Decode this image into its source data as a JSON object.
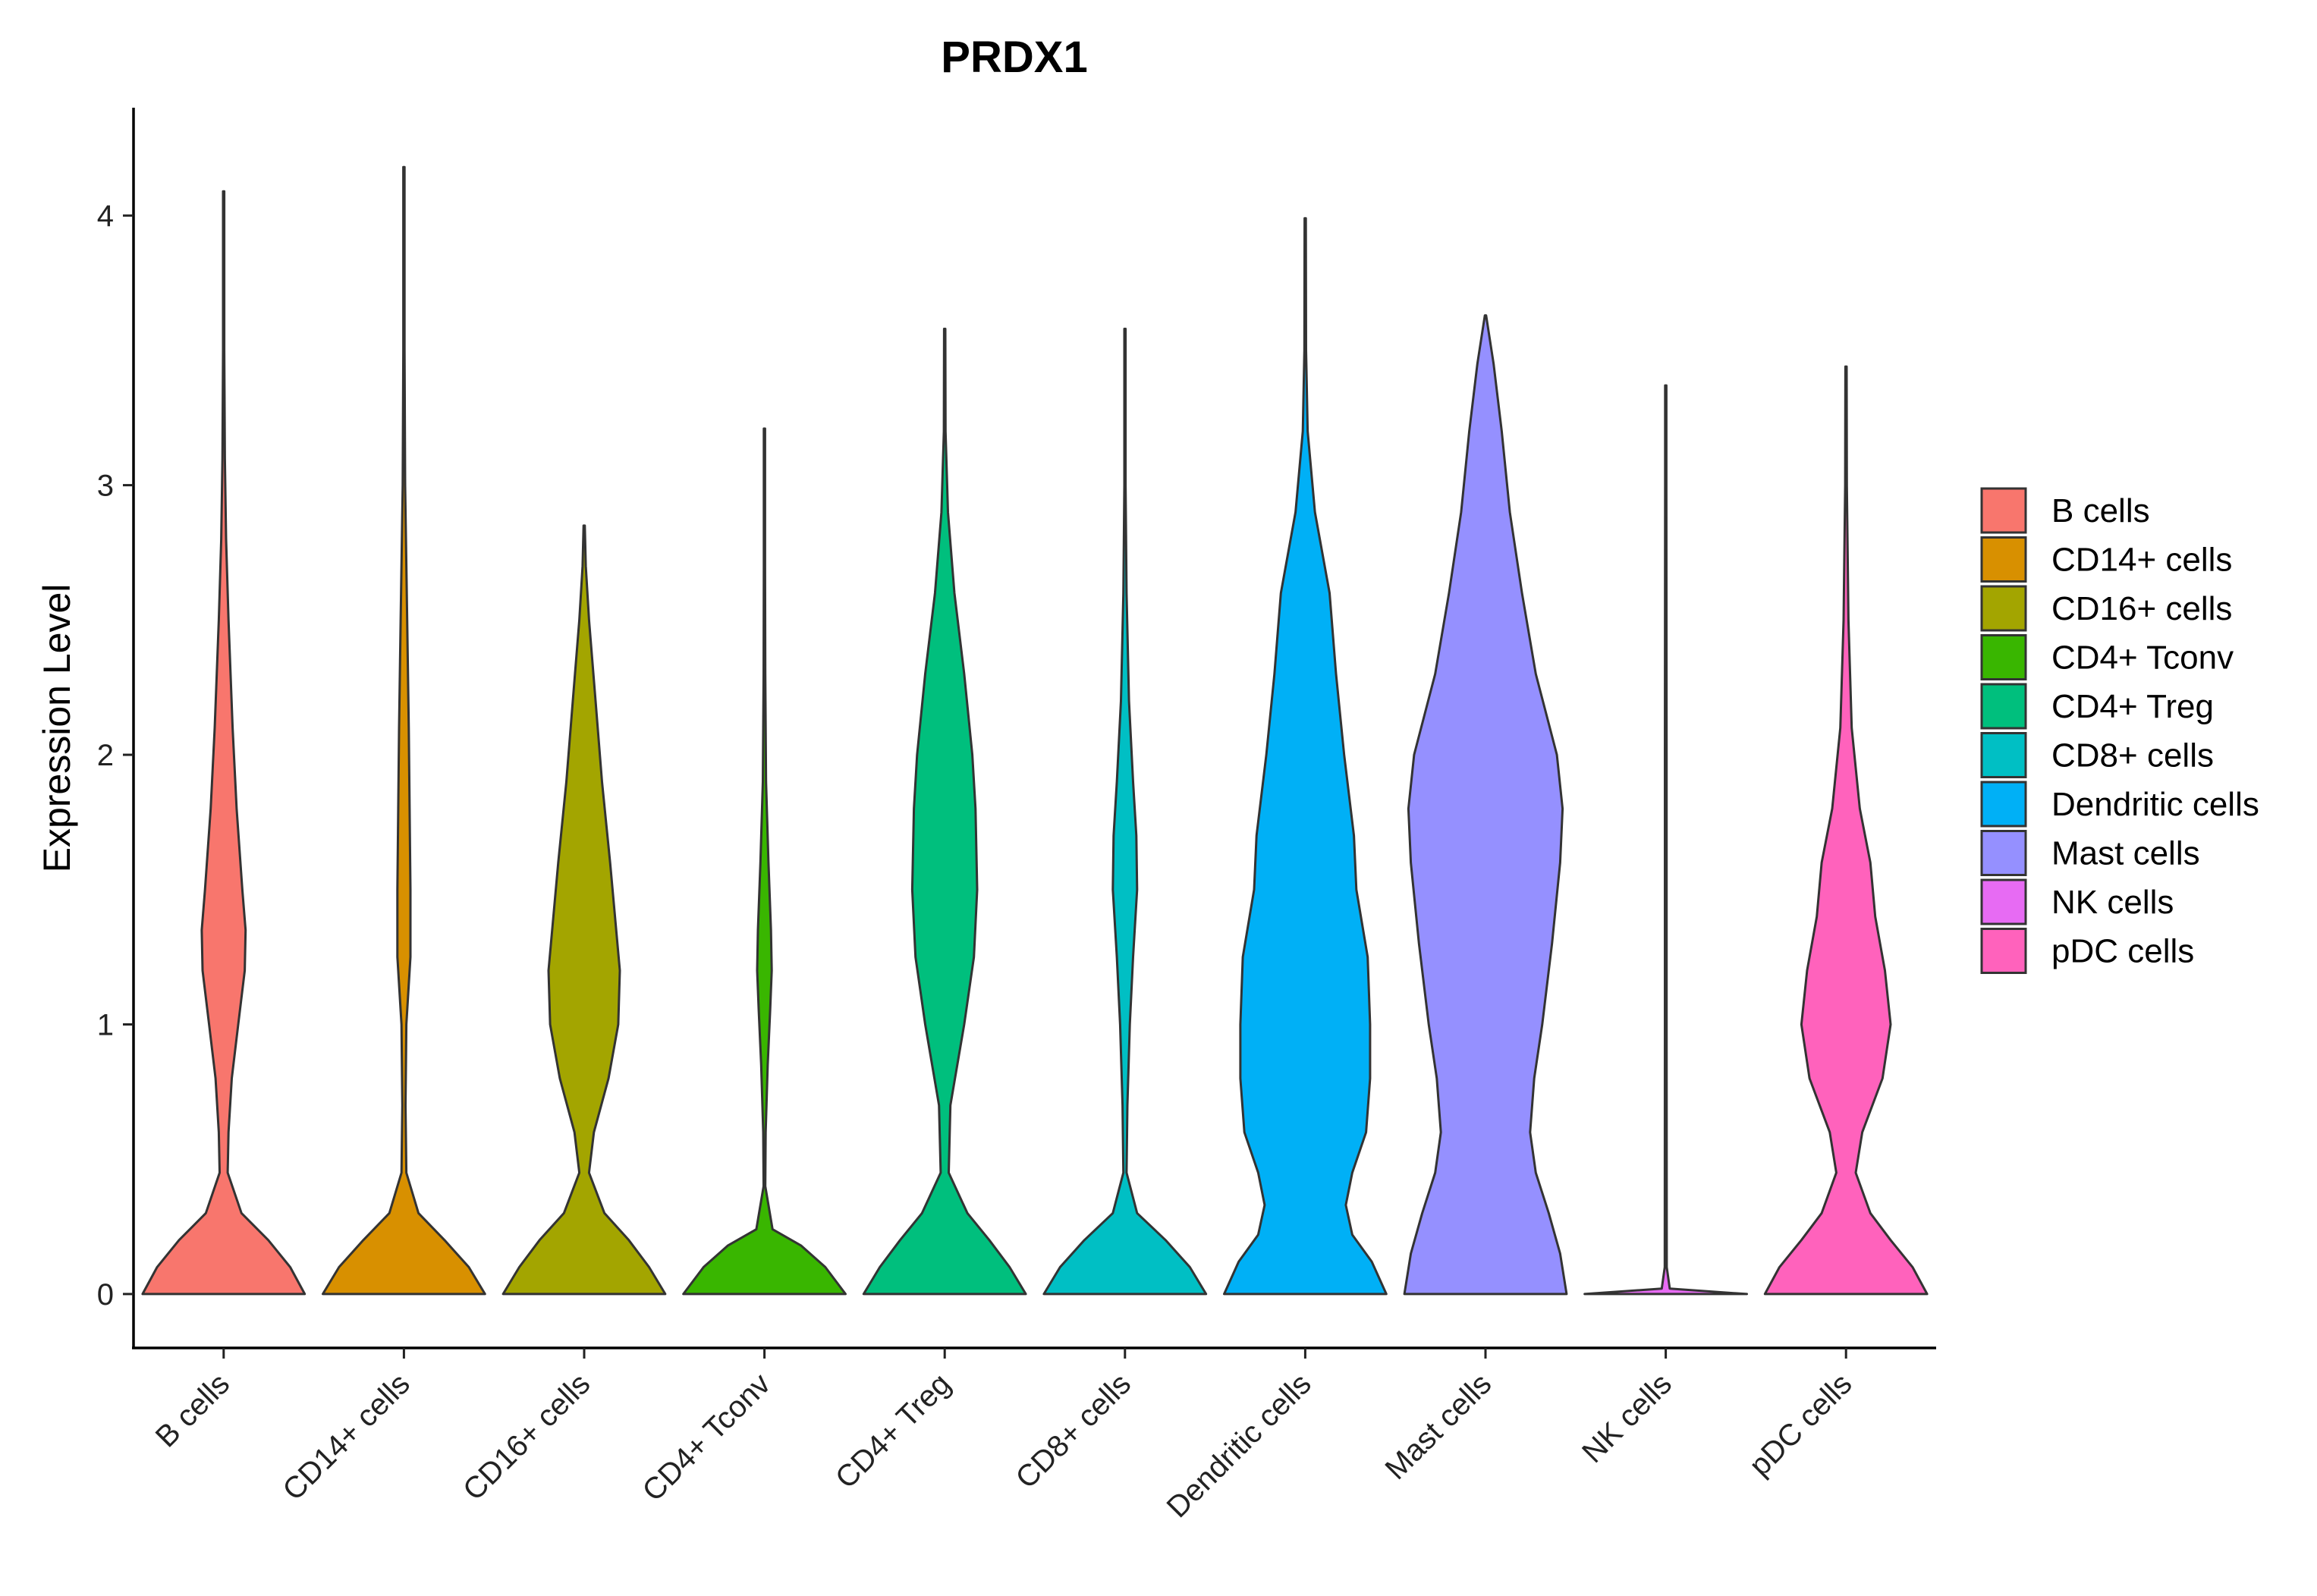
{
  "chart_data": {
    "type": "violin",
    "title": "PRDX1",
    "xlabel": "",
    "ylabel": "Expression Level",
    "ylim": [
      -0.2,
      4.4
    ],
    "yticks": [
      0,
      1,
      2,
      3,
      4
    ],
    "grid": false,
    "legend_position": "right",
    "series": [
      {
        "name": "B cells",
        "color": "#F8766D",
        "max": 4.09,
        "density": [
          [
            0,
            1.0
          ],
          [
            0.1,
            0.82
          ],
          [
            0.2,
            0.55
          ],
          [
            0.3,
            0.22
          ],
          [
            0.45,
            0.05
          ],
          [
            0.6,
            0.06
          ],
          [
            0.8,
            0.1
          ],
          [
            1.0,
            0.18
          ],
          [
            1.2,
            0.26
          ],
          [
            1.35,
            0.27
          ],
          [
            1.5,
            0.23
          ],
          [
            1.8,
            0.16
          ],
          [
            2.1,
            0.11
          ],
          [
            2.5,
            0.06
          ],
          [
            2.8,
            0.03
          ],
          [
            3.1,
            0.015
          ],
          [
            3.5,
            0.005
          ],
          [
            4.09,
            0
          ]
        ]
      },
      {
        "name": "CD14+ cells",
        "color": "#D89000",
        "max": 4.18,
        "density": [
          [
            0,
            1.0
          ],
          [
            0.1,
            0.8
          ],
          [
            0.2,
            0.5
          ],
          [
            0.3,
            0.18
          ],
          [
            0.45,
            0.03
          ],
          [
            0.7,
            0.02
          ],
          [
            1.0,
            0.03
          ],
          [
            1.25,
            0.08
          ],
          [
            1.5,
            0.08
          ],
          [
            1.8,
            0.07
          ],
          [
            2.1,
            0.06
          ],
          [
            2.5,
            0.04
          ],
          [
            3.0,
            0.015
          ],
          [
            3.5,
            0.005
          ],
          [
            4.18,
            0
          ]
        ]
      },
      {
        "name": "CD16+ cells",
        "color": "#A3A500",
        "max": 2.85,
        "density": [
          [
            0,
            1.0
          ],
          [
            0.1,
            0.8
          ],
          [
            0.2,
            0.55
          ],
          [
            0.3,
            0.25
          ],
          [
            0.45,
            0.06
          ],
          [
            0.6,
            0.12
          ],
          [
            0.8,
            0.3
          ],
          [
            1.0,
            0.42
          ],
          [
            1.2,
            0.44
          ],
          [
            1.4,
            0.38
          ],
          [
            1.6,
            0.32
          ],
          [
            1.9,
            0.22
          ],
          [
            2.2,
            0.14
          ],
          [
            2.5,
            0.06
          ],
          [
            2.7,
            0.02
          ],
          [
            2.85,
            0
          ]
        ]
      },
      {
        "name": "CD4+ Tconv",
        "color": "#39B600",
        "max": 3.21,
        "density": [
          [
            0,
            1.0
          ],
          [
            0.1,
            0.75
          ],
          [
            0.18,
            0.45
          ],
          [
            0.24,
            0.1
          ],
          [
            0.4,
            0.01
          ],
          [
            0.6,
            0.015
          ],
          [
            0.85,
            0.04
          ],
          [
            1.05,
            0.07
          ],
          [
            1.2,
            0.09
          ],
          [
            1.35,
            0.08
          ],
          [
            1.6,
            0.05
          ],
          [
            1.9,
            0.02
          ],
          [
            2.3,
            0.01
          ],
          [
            2.7,
            0.004
          ],
          [
            3.21,
            0
          ]
        ]
      },
      {
        "name": "CD4+ Treg",
        "color": "#00BF7D",
        "max": 3.58,
        "density": [
          [
            0,
            1.0
          ],
          [
            0.1,
            0.8
          ],
          [
            0.2,
            0.55
          ],
          [
            0.3,
            0.28
          ],
          [
            0.45,
            0.05
          ],
          [
            0.7,
            0.07
          ],
          [
            1.0,
            0.24
          ],
          [
            1.25,
            0.36
          ],
          [
            1.5,
            0.4
          ],
          [
            1.8,
            0.38
          ],
          [
            2.0,
            0.34
          ],
          [
            2.3,
            0.24
          ],
          [
            2.6,
            0.12
          ],
          [
            2.9,
            0.04
          ],
          [
            3.2,
            0.01
          ],
          [
            3.58,
            0
          ]
        ]
      },
      {
        "name": "CD8+ cells",
        "color": "#00BFC4",
        "max": 3.58,
        "density": [
          [
            0,
            1.0
          ],
          [
            0.1,
            0.8
          ],
          [
            0.2,
            0.5
          ],
          [
            0.3,
            0.15
          ],
          [
            0.45,
            0.02
          ],
          [
            0.7,
            0.03
          ],
          [
            1.0,
            0.06
          ],
          [
            1.25,
            0.1
          ],
          [
            1.5,
            0.15
          ],
          [
            1.7,
            0.14
          ],
          [
            1.9,
            0.1
          ],
          [
            2.2,
            0.05
          ],
          [
            2.6,
            0.02
          ],
          [
            3.0,
            0.006
          ],
          [
            3.58,
            0
          ]
        ]
      },
      {
        "name": "Dendritic cells",
        "color": "#00B0F6",
        "max": 3.99,
        "density": [
          [
            0,
            1.0
          ],
          [
            0.12,
            0.82
          ],
          [
            0.22,
            0.58
          ],
          [
            0.33,
            0.5
          ],
          [
            0.45,
            0.58
          ],
          [
            0.6,
            0.75
          ],
          [
            0.8,
            0.8
          ],
          [
            1.0,
            0.8
          ],
          [
            1.25,
            0.77
          ],
          [
            1.5,
            0.63
          ],
          [
            1.7,
            0.6
          ],
          [
            2.0,
            0.48
          ],
          [
            2.3,
            0.38
          ],
          [
            2.6,
            0.3
          ],
          [
            2.9,
            0.12
          ],
          [
            3.2,
            0.03
          ],
          [
            3.5,
            0.01
          ],
          [
            3.99,
            0
          ]
        ]
      },
      {
        "name": "Mast cells",
        "color": "#9590FF",
        "max": 3.63,
        "density": [
          [
            0,
            1.0
          ],
          [
            0.15,
            0.92
          ],
          [
            0.3,
            0.78
          ],
          [
            0.45,
            0.62
          ],
          [
            0.6,
            0.55
          ],
          [
            0.8,
            0.6
          ],
          [
            1.0,
            0.7
          ],
          [
            1.3,
            0.82
          ],
          [
            1.6,
            0.92
          ],
          [
            1.8,
            0.95
          ],
          [
            2.0,
            0.88
          ],
          [
            2.3,
            0.62
          ],
          [
            2.6,
            0.45
          ],
          [
            2.9,
            0.3
          ],
          [
            3.2,
            0.2
          ],
          [
            3.45,
            0.1
          ],
          [
            3.63,
            0
          ]
        ]
      },
      {
        "name": "NK cells",
        "color": "#E76BF3",
        "max": 3.37,
        "density": [
          [
            0,
            1.0
          ],
          [
            0.02,
            0.05
          ],
          [
            0.1,
            0.012
          ],
          [
            1.0,
            0.01
          ],
          [
            2.0,
            0.01
          ],
          [
            3.0,
            0.006
          ],
          [
            3.37,
            0
          ]
        ]
      },
      {
        "name": "pDC cells",
        "color": "#FF62BC",
        "max": 3.44,
        "density": [
          [
            0,
            1.0
          ],
          [
            0.1,
            0.82
          ],
          [
            0.2,
            0.55
          ],
          [
            0.3,
            0.3
          ],
          [
            0.45,
            0.12
          ],
          [
            0.6,
            0.2
          ],
          [
            0.8,
            0.45
          ],
          [
            1.0,
            0.55
          ],
          [
            1.2,
            0.48
          ],
          [
            1.4,
            0.36
          ],
          [
            1.6,
            0.3
          ],
          [
            1.8,
            0.17
          ],
          [
            2.1,
            0.07
          ],
          [
            2.5,
            0.03
          ],
          [
            3.0,
            0.01
          ],
          [
            3.44,
            0
          ]
        ]
      }
    ]
  }
}
